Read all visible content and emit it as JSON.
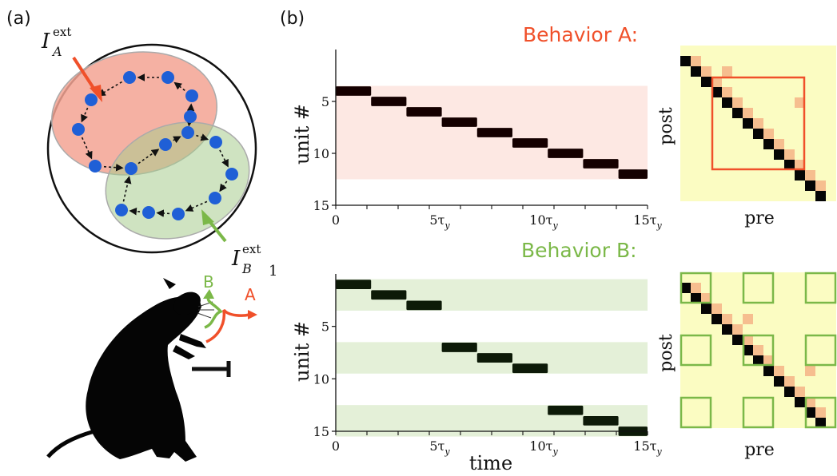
{
  "panel_a": {
    "label": "(a)",
    "input_a": {
      "base": "I",
      "sub": "A",
      "sup": "ext"
    },
    "input_b": {
      "base": "I",
      "sub": "B",
      "sup": "ext"
    },
    "footnote": "1",
    "arrow_b_label": "B",
    "arrow_a_label": "A"
  },
  "panel_b": {
    "label": "(b)",
    "behavior_a_title": "Behavior A:",
    "behavior_b_title": "Behavior B:",
    "ylabel": "unit #",
    "xlabel": "time",
    "matrix_ylabel": "post",
    "matrix_xlabel": "pre",
    "yticks": [
      "5",
      "10",
      "15"
    ],
    "xticks": [
      "0",
      "5τ",
      "10τ",
      "15τ"
    ],
    "xtick_sub": "y"
  },
  "colors": {
    "red": "#f0502a",
    "green": "#7bb848",
    "blue": "#1f5fd6",
    "red_fill": "#f3a393",
    "green_fill": "#b9d5a0",
    "band_a": "#fde8e3",
    "band_b": "#e4f0d8",
    "matrix_bg": "#fbfcc2",
    "weak_weight": "#f6be8f"
  },
  "chart_data": [
    {
      "type": "heatmap",
      "title": "Behavior A:",
      "ylabel": "unit #",
      "xlabel": "",
      "x_range": [
        0,
        15
      ],
      "y_range": [
        0,
        15
      ],
      "active_units": [
        4,
        5,
        6,
        7,
        8,
        9,
        10,
        11,
        12
      ],
      "sequence": [
        {
          "unit": 4,
          "start": 0.0,
          "end": 1.7
        },
        {
          "unit": 5,
          "start": 1.7,
          "end": 3.4
        },
        {
          "unit": 6,
          "start": 3.4,
          "end": 5.1
        },
        {
          "unit": 7,
          "start": 5.1,
          "end": 6.8
        },
        {
          "unit": 8,
          "start": 6.8,
          "end": 8.5
        },
        {
          "unit": 9,
          "start": 8.5,
          "end": 10.2
        },
        {
          "unit": 10,
          "start": 10.2,
          "end": 11.9
        },
        {
          "unit": 11,
          "start": 11.9,
          "end": 13.6
        },
        {
          "unit": 12,
          "start": 13.6,
          "end": 15.0
        }
      ]
    },
    {
      "type": "heatmap",
      "title": "Behavior B:",
      "ylabel": "unit #",
      "xlabel": "time",
      "x_range": [
        0,
        15
      ],
      "y_range": [
        0,
        15
      ],
      "active_units": [
        1,
        2,
        3,
        7,
        8,
        9,
        13,
        14,
        15
      ],
      "sequence": [
        {
          "unit": 1,
          "start": 0.0,
          "end": 1.7
        },
        {
          "unit": 2,
          "start": 1.7,
          "end": 3.4
        },
        {
          "unit": 3,
          "start": 3.4,
          "end": 5.1
        },
        {
          "unit": 7,
          "start": 5.1,
          "end": 6.8
        },
        {
          "unit": 8,
          "start": 6.8,
          "end": 8.5
        },
        {
          "unit": 9,
          "start": 8.5,
          "end": 10.2
        },
        {
          "unit": 13,
          "start": 10.2,
          "end": 11.9
        },
        {
          "unit": 14,
          "start": 11.9,
          "end": 13.6
        },
        {
          "unit": 15,
          "start": 13.6,
          "end": 15.0
        }
      ]
    },
    {
      "type": "heatmap",
      "title": "",
      "xlabel": "pre",
      "ylabel": "post",
      "n": 15,
      "strong": [
        [
          1,
          2
        ],
        [
          2,
          3
        ],
        [
          3,
          4
        ],
        [
          4,
          5
        ],
        [
          5,
          6
        ],
        [
          6,
          7
        ],
        [
          7,
          8
        ],
        [
          8,
          9
        ],
        [
          9,
          10
        ],
        [
          10,
          11
        ],
        [
          11,
          12
        ],
        [
          12,
          13
        ],
        [
          13,
          14
        ],
        [
          14,
          15
        ]
      ],
      "weak": [
        [
          2,
          2
        ],
        [
          3,
          3
        ],
        [
          4,
          4
        ],
        [
          5,
          5
        ],
        [
          6,
          6
        ],
        [
          7,
          7
        ],
        [
          8,
          8
        ],
        [
          9,
          9
        ],
        [
          10,
          10
        ],
        [
          11,
          11
        ],
        [
          12,
          12
        ],
        [
          13,
          13
        ],
        [
          14,
          14
        ],
        [
          5,
          3
        ],
        [
          12,
          6
        ]
      ],
      "highlight_blocks": [
        [
          4,
          12
        ]
      ]
    },
    {
      "type": "heatmap",
      "title": "",
      "xlabel": "pre",
      "ylabel": "post",
      "n": 15,
      "strong": [
        [
          1,
          2
        ],
        [
          2,
          3
        ],
        [
          3,
          4
        ],
        [
          4,
          5
        ],
        [
          5,
          6
        ],
        [
          6,
          7
        ],
        [
          7,
          8
        ],
        [
          8,
          9
        ],
        [
          9,
          10
        ],
        [
          10,
          11
        ],
        [
          11,
          12
        ],
        [
          12,
          13
        ],
        [
          13,
          14
        ],
        [
          14,
          15
        ]
      ],
      "weak": [
        [
          2,
          2
        ],
        [
          3,
          3
        ],
        [
          4,
          4
        ],
        [
          5,
          5
        ],
        [
          6,
          6
        ],
        [
          7,
          7
        ],
        [
          8,
          8
        ],
        [
          9,
          9
        ],
        [
          10,
          10
        ],
        [
          11,
          11
        ],
        [
          12,
          12
        ],
        [
          13,
          13
        ],
        [
          14,
          14
        ],
        [
          7,
          5
        ],
        [
          13,
          10
        ]
      ],
      "highlight_blocks": [
        [
          1,
          3
        ],
        [
          7,
          9
        ],
        [
          13,
          15
        ]
      ]
    }
  ]
}
